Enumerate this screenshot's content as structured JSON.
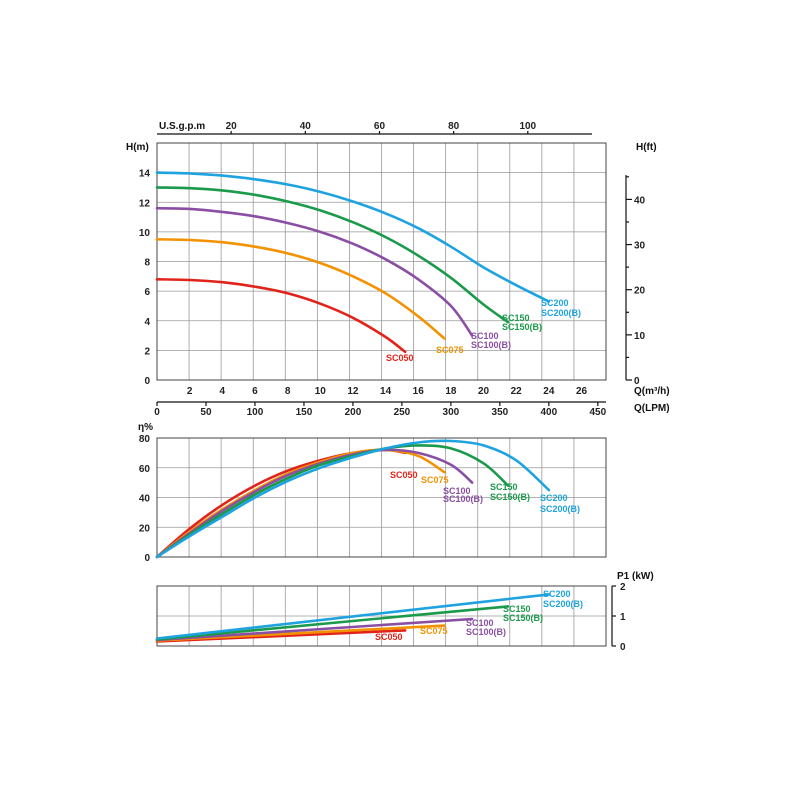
{
  "chart_data": [
    {
      "name": "head-curve",
      "type": "line",
      "title": "",
      "top_axis_label": "U.S.g.p.m",
      "top_ticks": [
        "20",
        "40",
        "60",
        "80",
        "100"
      ],
      "top_tick_values": [
        20,
        40,
        60,
        80,
        100
      ],
      "ylabel_left": "H(m)",
      "ylabel_right": "H(ft)",
      "ylim": [
        0,
        16
      ],
      "yticks_left": [
        "0",
        "2",
        "4",
        "6",
        "8",
        "10",
        "12",
        "14"
      ],
      "yticks_right": [
        "0",
        "10",
        "20",
        "30",
        "40"
      ],
      "xlabel": "Q(m³/h)",
      "xlim": [
        0,
        27.5
      ],
      "xticks": [
        "2",
        "4",
        "6",
        "8",
        "10",
        "12",
        "14",
        "16",
        "18",
        "20",
        "22",
        "24",
        "26"
      ],
      "xlabel2": "Q(LPM)",
      "xticks2": [
        "0",
        "50",
        "100",
        "150",
        "200",
        "250",
        "300",
        "350",
        "400",
        "450"
      ],
      "series": [
        {
          "name": "SC050",
          "color": "#e2231a",
          "x": [
            0,
            2,
            4,
            6,
            8,
            10,
            12,
            14,
            15.2
          ],
          "y": [
            6.8,
            6.75,
            6.6,
            6.3,
            5.85,
            5.15,
            4.2,
            2.9,
            1.9
          ]
        },
        {
          "name": "SC075",
          "color": "#f39200",
          "x": [
            0,
            2,
            4,
            6,
            8,
            10,
            12,
            14,
            16,
            17.6
          ],
          "y": [
            9.5,
            9.45,
            9.3,
            9.0,
            8.55,
            7.9,
            7.0,
            5.85,
            4.3,
            2.8
          ]
        },
        {
          "name": "SC100",
          "color": "#8a4fa3",
          "x": [
            0,
            2,
            4,
            6,
            8,
            10,
            12,
            14,
            16,
            18,
            19.3
          ],
          "y": [
            11.6,
            11.55,
            11.35,
            11.05,
            10.6,
            10.0,
            9.2,
            8.15,
            6.8,
            5.0,
            3.0
          ]
        },
        {
          "name": "SC150",
          "color": "#1a9a4a",
          "x": [
            0,
            2,
            4,
            6,
            8,
            10,
            12,
            14,
            16,
            18,
            20,
            21.5
          ],
          "y": [
            13.0,
            12.95,
            12.8,
            12.5,
            12.05,
            11.45,
            10.65,
            9.65,
            8.4,
            6.9,
            5.1,
            3.9
          ]
        },
        {
          "name": "SC200",
          "color": "#1ea3e0",
          "x": [
            0,
            2,
            4,
            6,
            8,
            10,
            12,
            14,
            16,
            18,
            20,
            22,
            24
          ],
          "y": [
            14.0,
            13.95,
            13.8,
            13.55,
            13.2,
            12.7,
            12.05,
            11.25,
            10.25,
            9.0,
            7.6,
            6.4,
            5.3
          ]
        }
      ],
      "labels": [
        {
          "text": "SC050",
          "color": "#e2231a"
        },
        {
          "text": "SC075",
          "color": "#f39200"
        },
        {
          "text": "SC100",
          "color": "#8a4fa3"
        },
        {
          "text": "SC100(B)",
          "color": "#8a4fa3"
        },
        {
          "text": "SC150",
          "color": "#1a9a4a"
        },
        {
          "text": "SC150(B)",
          "color": "#1a9a4a"
        },
        {
          "text": "SC200",
          "color": "#1ea3e0"
        },
        {
          "text": "SC200(B)",
          "color": "#1ea3e0"
        }
      ]
    },
    {
      "name": "efficiency-curve",
      "type": "line",
      "ylabel": "η%",
      "ylim": [
        0,
        80
      ],
      "yticks": [
        "0",
        "20",
        "40",
        "60",
        "80"
      ],
      "xlim": [
        0,
        27.5
      ],
      "series": [
        {
          "name": "SC050",
          "color": "#e2231a",
          "x": [
            0,
            2,
            4,
            6,
            8,
            10,
            12,
            14,
            15.2
          ],
          "y": [
            0,
            19,
            35,
            48,
            58,
            65,
            70,
            72,
            70
          ]
        },
        {
          "name": "SC075",
          "color": "#f39200",
          "x": [
            0,
            2,
            4,
            6,
            8,
            10,
            12,
            14,
            16,
            17.6
          ],
          "y": [
            0,
            17,
            32,
            45,
            56,
            64,
            70,
            72,
            68,
            57
          ]
        },
        {
          "name": "SC100",
          "color": "#8a4fa3",
          "x": [
            0,
            2,
            4,
            6,
            8,
            10,
            12,
            14,
            16,
            18,
            19.3
          ],
          "y": [
            0,
            16,
            31,
            44,
            55,
            63,
            69,
            72,
            70,
            62,
            50
          ]
        },
        {
          "name": "SC150",
          "color": "#1a9a4a",
          "x": [
            0,
            2,
            4,
            6,
            8,
            10,
            12,
            14,
            16,
            18,
            20,
            21.5
          ],
          "y": [
            0,
            15,
            29,
            42,
            53,
            62,
            68,
            73,
            75,
            73,
            63,
            48
          ]
        },
        {
          "name": "SC200",
          "color": "#1ea3e0",
          "x": [
            0,
            2,
            4,
            6,
            8,
            10,
            12,
            14,
            16,
            18,
            20,
            22,
            24
          ],
          "y": [
            0,
            14,
            27,
            40,
            51,
            60,
            67,
            73,
            77,
            78,
            75,
            65,
            45
          ]
        }
      ],
      "labels": [
        {
          "text": "SC050",
          "color": "#e2231a"
        },
        {
          "text": "SC075",
          "color": "#f39200"
        },
        {
          "text": "SC100",
          "color": "#8a4fa3"
        },
        {
          "text": "SC100(B)",
          "color": "#8a4fa3"
        },
        {
          "text": "SC150",
          "color": "#1a9a4a"
        },
        {
          "text": "SC150(B)",
          "color": "#1a9a4a"
        },
        {
          "text": "SC200",
          "color": "#1ea3e0"
        },
        {
          "text": "SC200(B)",
          "color": "#1ea3e0"
        }
      ]
    },
    {
      "name": "power-curve",
      "type": "line",
      "ylabel": "P1 (kW)",
      "ylim": [
        0,
        2
      ],
      "yticks": [
        "0",
        "1",
        "2"
      ],
      "xlim": [
        0,
        27.5
      ],
      "series": [
        {
          "name": "SC050",
          "color": "#e2231a",
          "x": [
            0,
            15.2
          ],
          "y": [
            0.15,
            0.52
          ]
        },
        {
          "name": "SC075",
          "color": "#f39200",
          "x": [
            0,
            17.6
          ],
          "y": [
            0.18,
            0.68
          ]
        },
        {
          "name": "SC100",
          "color": "#8a4fa3",
          "x": [
            0,
            19.3
          ],
          "y": [
            0.2,
            0.9
          ]
        },
        {
          "name": "SC150",
          "color": "#1a9a4a",
          "x": [
            0,
            21.5
          ],
          "y": [
            0.22,
            1.32
          ]
        },
        {
          "name": "SC200",
          "color": "#1ea3e0",
          "x": [
            0,
            24
          ],
          "y": [
            0.25,
            1.72
          ]
        }
      ],
      "labels": [
        {
          "text": "SC050",
          "color": "#e2231a"
        },
        {
          "text": "SC075",
          "color": "#f39200"
        },
        {
          "text": "SC100",
          "color": "#8a4fa3"
        },
        {
          "text": "SC100(B)",
          "color": "#8a4fa3"
        },
        {
          "text": "SC150",
          "color": "#1a9a4a"
        },
        {
          "text": "SC150(B)",
          "color": "#1a9a4a"
        },
        {
          "text": "SC200",
          "color": "#1ea3e0"
        },
        {
          "text": "SC200(B)",
          "color": "#1ea3e0"
        }
      ]
    }
  ]
}
